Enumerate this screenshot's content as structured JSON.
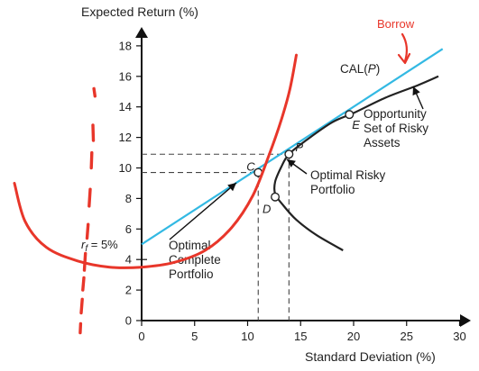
{
  "chart_data": {
    "type": "line",
    "ylabel": "Expected Return (%)",
    "xlabel": "Standard Deviation (%)",
    "xlim": [
      0,
      30
    ],
    "ylim": [
      0,
      18
    ],
    "x_ticks": [
      0,
      5,
      10,
      15,
      20,
      25,
      30
    ],
    "y_ticks": [
      0,
      2,
      4,
      6,
      8,
      10,
      12,
      14,
      16,
      18
    ],
    "rf_label_prefix": "r",
    "rf_label_sub": "f",
    "rf_label_suffix": " = 5%",
    "rf_value": 5,
    "cal_label_prefix": "CAL(",
    "cal_label_italic": "P",
    "cal_label_suffix": ")",
    "cal_color": "#33b9e3",
    "cal_line": [
      [
        0,
        5
      ],
      [
        28.4,
        17.8
      ]
    ],
    "opportunity_set_color": "#222222",
    "opportunity_set": [
      [
        19.0,
        4.6
      ],
      [
        16.5,
        5.6
      ],
      [
        14.6,
        6.6
      ],
      [
        13.3,
        7.6
      ],
      [
        12.6,
        8.3
      ],
      [
        12.6,
        9.1
      ],
      [
        13.2,
        10.1
      ],
      [
        13.9,
        10.9
      ],
      [
        15.5,
        11.8
      ],
      [
        18.0,
        13.0
      ],
      [
        20.0,
        13.6
      ],
      [
        23.0,
        14.6
      ],
      [
        26.0,
        15.4
      ],
      [
        28.0,
        16.0
      ]
    ],
    "points": [
      {
        "label": "C",
        "x": 11.0,
        "y": 9.7
      },
      {
        "label": "P",
        "x": 13.9,
        "y": 10.9
      },
      {
        "label": "E",
        "x": 19.6,
        "y": 13.5
      },
      {
        "label": "D",
        "x": 12.6,
        "y": 8.1
      }
    ],
    "annotations": [
      {
        "lines": [
          "Opportunity",
          "Set of Risky",
          "Assets"
        ]
      },
      {
        "lines": [
          "Optimal Risky",
          "Portfolio"
        ]
      },
      {
        "lines": [
          "Optimal",
          "Complete",
          "Portfolio"
        ]
      }
    ],
    "handwritten": {
      "color": "#e8362a",
      "text": "Borrow",
      "indifference_curve": [
        [
          -12.0,
          9.0
        ],
        [
          -11.0,
          6.5
        ],
        [
          -9.0,
          4.8
        ],
        [
          -6.0,
          3.9
        ],
        [
          -3.0,
          3.5
        ],
        [
          0.0,
          3.5
        ],
        [
          3.0,
          3.8
        ],
        [
          6.0,
          4.6
        ],
        [
          8.5,
          6.1
        ],
        [
          10.5,
          8.2
        ],
        [
          12.0,
          10.8
        ],
        [
          13.2,
          13.2
        ],
        [
          14.0,
          15.2
        ],
        [
          14.6,
          17.4
        ]
      ],
      "dashes": [
        [
          [
            -4.5,
            15.2
          ],
          [
            -4.4,
            14.7
          ]
        ],
        [
          [
            -4.6,
            12.8
          ],
          [
            -4.55,
            11.8
          ]
        ],
        [
          [
            -4.7,
            11.0
          ],
          [
            -4.75,
            10.0
          ]
        ],
        [
          [
            -4.85,
            8.6
          ],
          [
            -4.95,
            7.5
          ]
        ],
        [
          [
            -5.05,
            6.3
          ],
          [
            -5.15,
            5.4
          ]
        ],
        [
          [
            -5.3,
            4.4
          ],
          [
            -5.4,
            3.3
          ]
        ],
        [
          [
            -5.45,
            2.8
          ],
          [
            -5.55,
            2.0
          ]
        ],
        [
          [
            -5.6,
            1.4
          ],
          [
            -5.7,
            0.5
          ]
        ],
        [
          [
            -5.75,
            -0.2
          ],
          [
            -5.8,
            -0.8
          ]
        ]
      ]
    }
  }
}
